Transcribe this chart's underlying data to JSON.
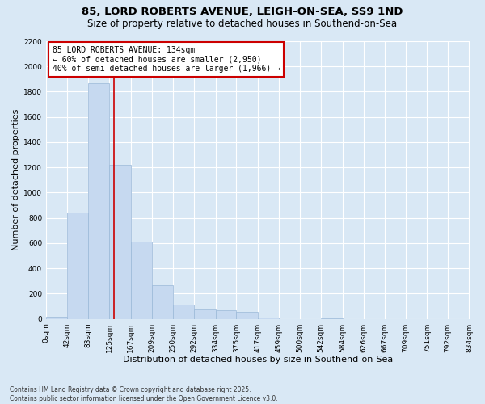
{
  "title1": "85, LORD ROBERTS AVENUE, LEIGH-ON-SEA, SS9 1ND",
  "title2": "Size of property relative to detached houses in Southend-on-Sea",
  "xlabel": "Distribution of detached houses by size in Southend-on-Sea",
  "ylabel": "Number of detached properties",
  "footer": "Contains HM Land Registry data © Crown copyright and database right 2025.\nContains public sector information licensed under the Open Government Licence v3.0.",
  "bin_edges": [
    0,
    42,
    83,
    125,
    167,
    209,
    250,
    292,
    334,
    375,
    417,
    459,
    500,
    542,
    584,
    626,
    667,
    709,
    751,
    792,
    834
  ],
  "bar_heights": [
    18,
    840,
    1870,
    1220,
    610,
    265,
    110,
    72,
    68,
    52,
    9,
    0,
    0,
    4,
    0,
    0,
    0,
    0,
    0,
    0
  ],
  "bar_color": "#c6d9f0",
  "bar_edge_color": "#9ab8d8",
  "vline_x": 134,
  "vline_color": "#cc0000",
  "annotation_text": "85 LORD ROBERTS AVENUE: 134sqm\n← 60% of detached houses are smaller (2,950)\n40% of semi-detached houses are larger (1,966) →",
  "annotation_box_color": "#cc0000",
  "ylim": [
    0,
    2200
  ],
  "yticks": [
    0,
    200,
    400,
    600,
    800,
    1000,
    1200,
    1400,
    1600,
    1800,
    2000,
    2200
  ],
  "bg_color": "#d9e8f5",
  "plot_bg_color": "#d9e8f5",
  "grid_color": "#ffffff",
  "title1_fontsize": 9.5,
  "title2_fontsize": 8.5,
  "xlabel_fontsize": 8,
  "ylabel_fontsize": 8,
  "annot_fontsize": 7,
  "tick_fontsize": 6.5
}
